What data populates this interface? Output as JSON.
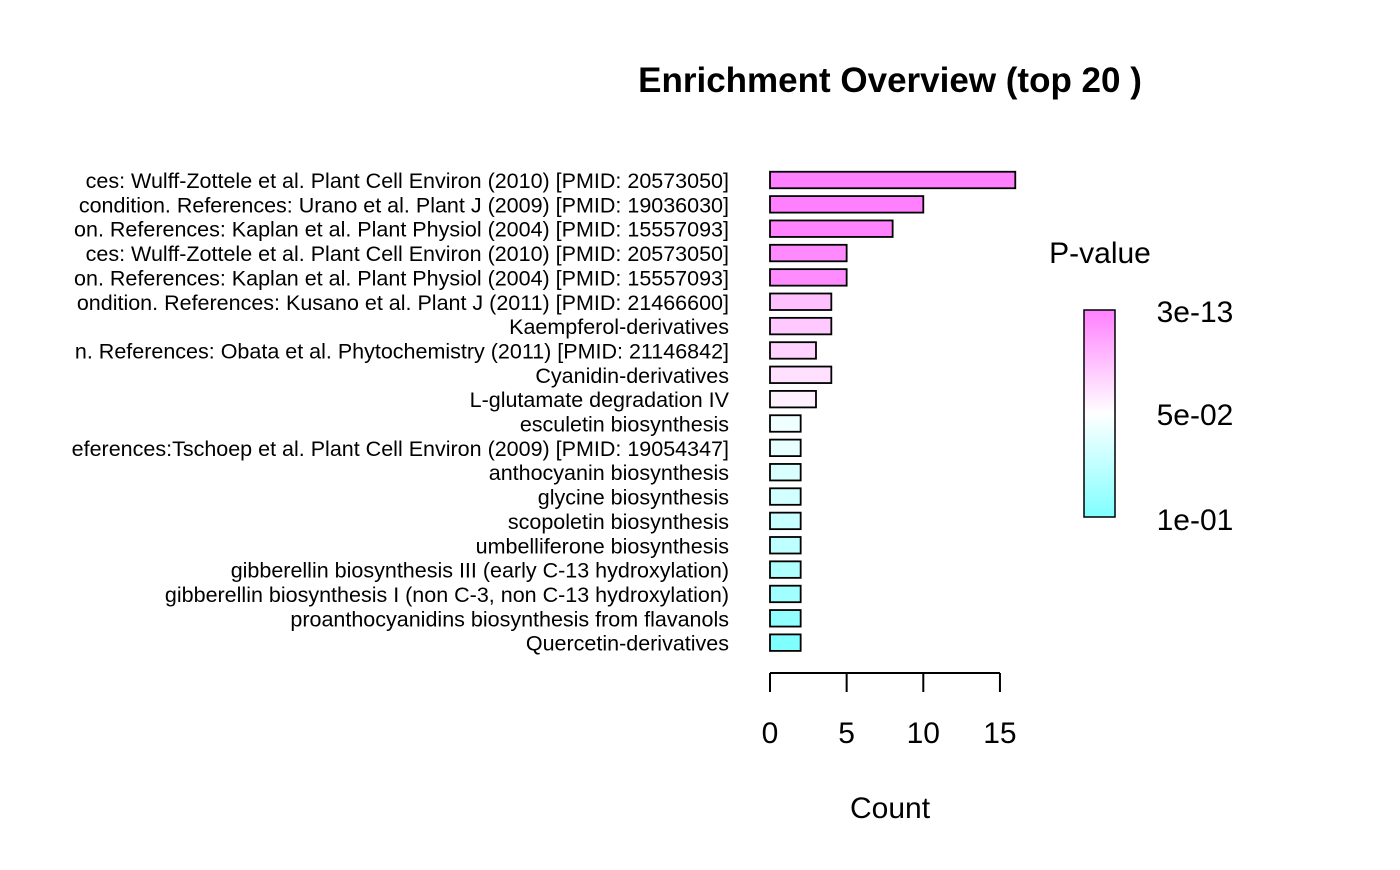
{
  "chart_data": {
    "type": "bar",
    "orientation": "horizontal",
    "title": "Enrichment Overview (top  20 )",
    "xlabel": "Count",
    "ylabel": "",
    "xlim": [
      0,
      16
    ],
    "x_ticks": [
      0,
      5,
      10,
      15
    ],
    "grid": false,
    "legend": {
      "title": "P-value",
      "placement": "right",
      "type": "color-gradient",
      "labels": [
        "3e-13",
        "5e-02",
        "1e-01"
      ],
      "colors": [
        "#FF80FF",
        "#FFFFFF",
        "#80FFFF"
      ]
    },
    "categories": [
      "ces: Wulff-Zottele et al. Plant Cell Environ (2010) [PMID: 20573050]",
      "condition. References: Urano et al. Plant J (2009) [PMID: 19036030]",
      "on. References: Kaplan et al. Plant Physiol (2004) [PMID: 15557093]",
      "ces: Wulff-Zottele et al. Plant Cell Environ (2010) [PMID: 20573050]",
      "on. References: Kaplan et al. Plant Physiol (2004) [PMID: 15557093]",
      "ondition. References: Kusano et al. Plant J (2011) [PMID: 21466600]",
      "Kaempferol-derivatives",
      "n. References: Obata et al. Phytochemistry (2011) [PMID: 21146842]",
      "Cyanidin-derivatives",
      "L-glutamate degradation IV",
      "esculetin biosynthesis",
      "eferences:Tschoep et al. Plant Cell Environ (2009) [PMID: 19054347]",
      "anthocyanin biosynthesis",
      "glycine biosynthesis",
      "scopoletin biosynthesis",
      "umbelliferone biosynthesis",
      "gibberellin biosynthesis III (early C-13 hydroxylation)",
      "gibberellin biosynthesis I (non C-3, non C-13 hydroxylation)",
      "proanthocyanidins biosynthesis from flavanols",
      "Quercetin-derivatives"
    ],
    "values": [
      16,
      10,
      8,
      5,
      5,
      4,
      4,
      3,
      4,
      3,
      2,
      2,
      2,
      2,
      2,
      2,
      2,
      2,
      2,
      2
    ],
    "bar_colors": [
      "#FF80FF",
      "#FF80FF",
      "#FF83FF",
      "#FF8AFF",
      "#FF8CFF",
      "#FFC0FF",
      "#FFC8FF",
      "#FFD2FF",
      "#FFE0FF",
      "#FFF0FF",
      "#F0FFFF",
      "#E8FFFF",
      "#DAFFFF",
      "#D2FFFF",
      "#C8FFFF",
      "#BEFFFF",
      "#B0FFFF",
      "#A2FFFF",
      "#92FFFF",
      "#80FFFF"
    ]
  }
}
